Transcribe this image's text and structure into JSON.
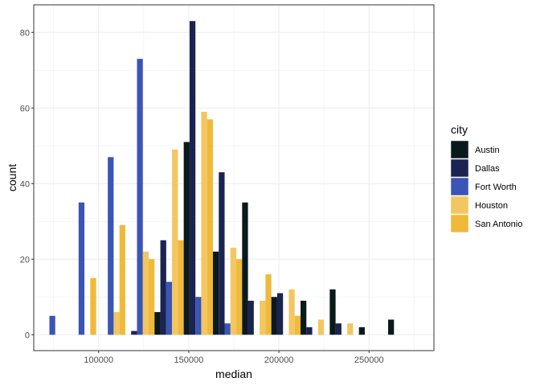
{
  "chart_data": {
    "type": "bar",
    "subtype": "dodged-histogram",
    "xlabel": "median",
    "ylabel": "count",
    "xlim": [
      64000,
      286000
    ],
    "ylim": [
      -4.2,
      87.3
    ],
    "x_ticks": [
      100000,
      150000,
      200000,
      250000
    ],
    "x_tick_labels": [
      "100000",
      "150000",
      "200000",
      "250000"
    ],
    "y_ticks": [
      0,
      20,
      40,
      60,
      80
    ],
    "y_tick_labels": [
      "0",
      "20",
      "40",
      "60",
      "80"
    ],
    "bin_width": 16200,
    "bin_centers": [
      74300,
      90500,
      106700,
      122900,
      139100,
      155300,
      171500,
      187700,
      203900,
      220100,
      236300,
      252500,
      268700
    ],
    "grid": true,
    "legend": {
      "title": "city",
      "position": "right",
      "entries": [
        "Austin",
        "Dallas",
        "Fort Worth",
        "Houston",
        "San Antonio"
      ]
    },
    "series": [
      {
        "name": "Austin",
        "color": "#0a1a1a",
        "values": [
          0,
          0,
          0,
          0,
          6,
          51,
          22,
          35,
          10,
          9,
          12,
          2,
          4
        ]
      },
      {
        "name": "Dallas",
        "color": "#1a2351",
        "values": [
          0,
          0,
          0,
          1,
          25,
          83,
          43,
          9,
          11,
          2,
          3,
          0,
          0
        ]
      },
      {
        "name": "Fort Worth",
        "color": "#3a55b4",
        "values": [
          5,
          35,
          47,
          73,
          14,
          10,
          3,
          0,
          0,
          0,
          0,
          0,
          0
        ]
      },
      {
        "name": "Houston",
        "color": "#f2c660",
        "values": [
          0,
          0,
          6,
          22,
          49,
          59,
          23,
          9,
          12,
          4,
          3,
          0,
          0
        ]
      },
      {
        "name": "San Antonio",
        "color": "#f0b93a",
        "values": [
          0,
          15,
          29,
          20,
          25,
          57,
          20,
          16,
          5,
          0,
          0,
          0,
          0
        ]
      }
    ]
  }
}
